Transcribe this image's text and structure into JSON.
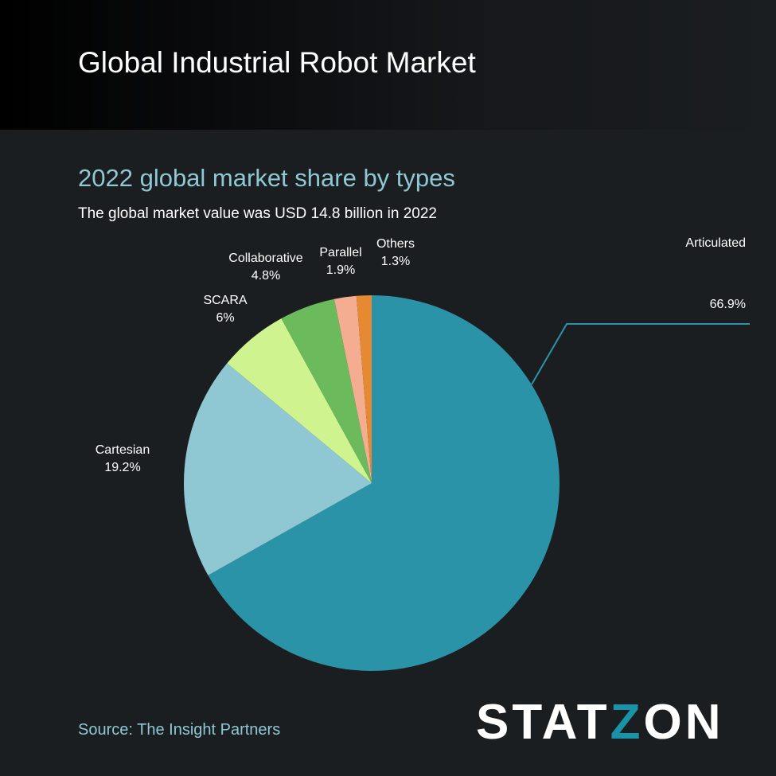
{
  "header": {
    "title": "Global Industrial Robot Market"
  },
  "subtitle": "2022 global market share by types",
  "description": "The global market value was USD 14.8 billion in 2022",
  "source": "Source: The Insight Partners",
  "logo": {
    "text_a": "STAT",
    "text_z": "Z",
    "text_b": "ON"
  },
  "chart_data": {
    "type": "pie",
    "start_angle": "top, clockwise",
    "categories": [
      "Articulated",
      "Cartesian",
      "SCARA",
      "Collaborative",
      "Parallel",
      "Others"
    ],
    "values": [
      66.9,
      19.2,
      6,
      4.8,
      1.9,
      1.3
    ],
    "labels": [
      "66.9%",
      "19.2%",
      "6%",
      "4.8%",
      "1.9%",
      "1.3%"
    ],
    "colors": [
      "#2b93a7",
      "#8fc8d3",
      "#cff48f",
      "#6bbb5d",
      "#f5ad92",
      "#e58a32"
    ]
  }
}
